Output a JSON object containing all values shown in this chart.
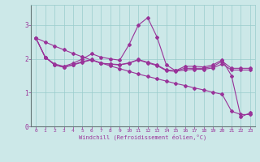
{
  "xlabel": "Windchill (Refroidissement éolien,°C)",
  "ylabel": "",
  "bg_color": "#cce8e8",
  "grid_color": "#99cccc",
  "line_color": "#993399",
  "xlim": [
    -0.5,
    23.5
  ],
  "ylim": [
    0,
    3.6
  ],
  "yticks": [
    0,
    1,
    2,
    3
  ],
  "xticks": [
    0,
    1,
    2,
    3,
    4,
    5,
    6,
    7,
    8,
    9,
    10,
    11,
    12,
    13,
    14,
    15,
    16,
    17,
    18,
    19,
    20,
    21,
    22,
    23
  ],
  "line1_x": [
    0,
    1,
    2,
    3,
    4,
    5,
    6,
    7,
    8,
    9,
    10,
    11,
    12,
    13,
    14,
    15,
    16,
    17,
    18,
    19,
    20,
    21,
    22,
    23
  ],
  "line1_y": [
    2.62,
    2.5,
    2.38,
    2.27,
    2.16,
    2.06,
    1.96,
    1.88,
    1.79,
    1.71,
    1.63,
    1.55,
    1.48,
    1.41,
    1.34,
    1.27,
    1.21,
    1.14,
    1.08,
    1.01,
    0.95,
    0.45,
    0.35,
    0.35
  ],
  "line2_x": [
    0,
    1,
    2,
    3,
    4,
    5,
    6,
    7,
    8,
    9,
    10,
    11,
    12,
    13,
    14,
    15,
    16,
    17,
    18,
    19,
    20,
    21,
    22,
    23
  ],
  "line2_y": [
    2.62,
    2.05,
    1.85,
    1.78,
    1.87,
    2.0,
    2.15,
    2.05,
    2.0,
    1.96,
    2.42,
    3.0,
    3.22,
    2.65,
    1.82,
    1.65,
    1.78,
    1.78,
    1.76,
    1.82,
    1.97,
    1.5,
    0.28,
    0.4
  ],
  "line3_x": [
    0,
    1,
    2,
    3,
    4,
    5,
    6,
    7,
    8,
    9,
    10,
    11,
    12,
    13,
    14,
    15,
    16,
    17,
    18,
    19,
    20,
    21,
    22,
    23
  ],
  "line3_y": [
    2.62,
    2.05,
    1.83,
    1.75,
    1.83,
    1.92,
    1.98,
    1.87,
    1.85,
    1.83,
    1.88,
    1.98,
    1.9,
    1.82,
    1.67,
    1.65,
    1.72,
    1.72,
    1.72,
    1.77,
    1.93,
    1.72,
    1.72,
    1.72
  ],
  "line4_x": [
    0,
    1,
    2,
    3,
    4,
    5,
    6,
    7,
    8,
    9,
    10,
    11,
    12,
    13,
    14,
    15,
    16,
    17,
    18,
    19,
    20,
    21,
    22,
    23
  ],
  "line4_y": [
    2.62,
    2.05,
    1.82,
    1.75,
    1.82,
    1.9,
    1.97,
    1.87,
    1.84,
    1.82,
    1.87,
    1.97,
    1.88,
    1.8,
    1.65,
    1.63,
    1.67,
    1.69,
    1.69,
    1.73,
    1.85,
    1.67,
    1.67,
    1.67
  ]
}
